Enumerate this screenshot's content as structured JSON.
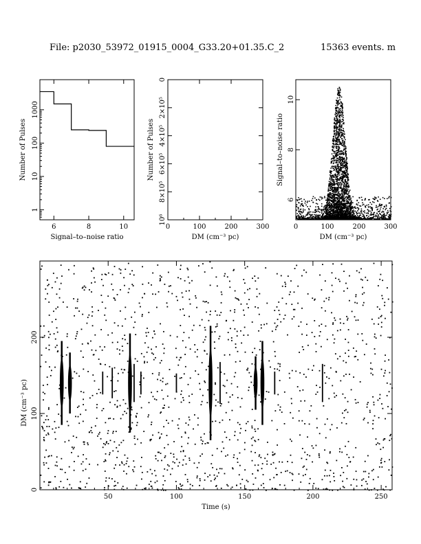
{
  "header": {
    "file_label": "File: p2030_53972_01915_0004_G33.20+01.35.C_2",
    "events_label": "15363 events. m"
  },
  "chart_data": [
    {
      "id": "snr-histogram",
      "type": "line",
      "xlabel": "Signal–to–noise ratio",
      "ylabel": "Number of Pulses",
      "xlim": [
        5.2,
        10.6
      ],
      "ylim": [
        0.5,
        8000
      ],
      "yscale": "log",
      "xticks": [
        6,
        8,
        10
      ],
      "yticks": [
        1,
        10,
        100,
        1000
      ],
      "x": [
        5.2,
        6.0,
        7.0,
        8.0,
        9.0,
        10.0
      ],
      "values": [
        3500,
        1500,
        250,
        240,
        80,
        80
      ]
    },
    {
      "id": "dm-histogram",
      "type": "bar",
      "xlabel": "DM (cm⁻³ pc)",
      "ylabel": "Number of Pulses",
      "xlim": [
        0,
        300
      ],
      "ylim": [
        0,
        1000000
      ],
      "xticks": [
        0,
        100,
        200,
        300
      ],
      "yticks": [
        "0",
        "2×10⁵",
        "4×10⁵",
        "6×10⁵",
        "8×10⁵",
        "10⁶"
      ],
      "values": []
    },
    {
      "id": "snr-vs-dm",
      "type": "scatter",
      "xlabel": "DM (cm⁻³ pc)",
      "ylabel": "Signal–to–noise ratio",
      "xlim": [
        0,
        300
      ],
      "ylim": [
        5.2,
        10.8
      ],
      "xticks": [
        0,
        100,
        200,
        300
      ],
      "yticks": [
        6,
        8,
        10
      ],
      "peak_dm": 135,
      "peak_snr": 10.5
    },
    {
      "id": "dm-vs-time",
      "type": "scatter",
      "xlabel": "Time (s)",
      "ylabel": "DM (cm⁻³ pc)",
      "xlim": [
        0,
        258
      ],
      "ylim": [
        0,
        300
      ],
      "xticks": [
        50,
        100,
        150,
        200,
        250
      ],
      "yticks": [
        0,
        100,
        200
      ],
      "pulse_times": [
        16,
        22,
        46,
        53,
        66,
        69,
        74,
        100,
        125,
        132,
        158,
        163,
        172,
        207
      ]
    }
  ]
}
